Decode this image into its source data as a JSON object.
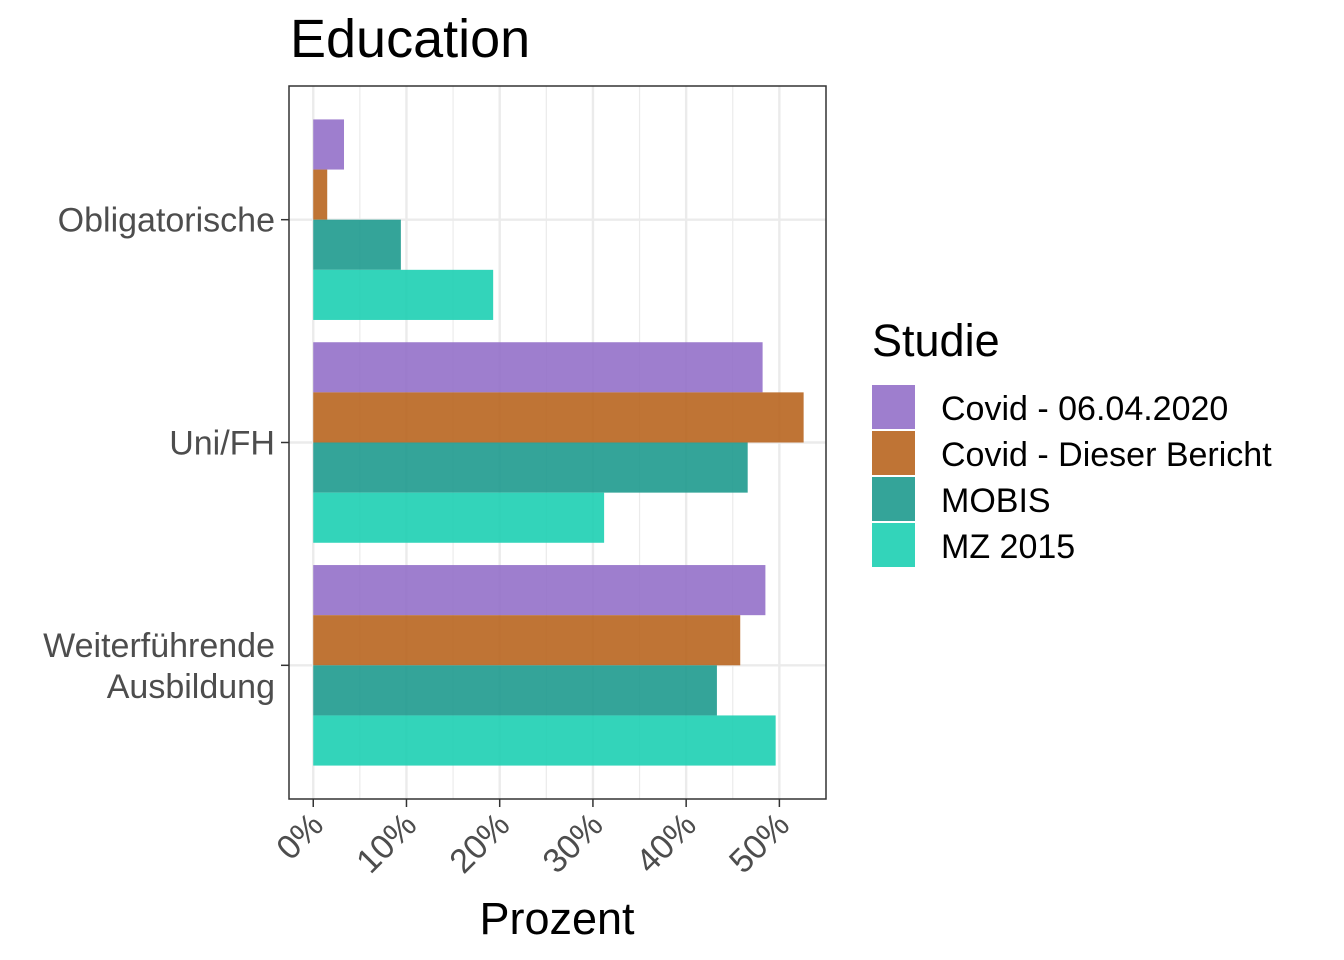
{
  "chart_data": {
    "type": "bar",
    "orientation": "horizontal",
    "title": "Education",
    "xlabel": "Prozent",
    "ylabel": "",
    "xlim": [
      -2.6,
      55
    ],
    "x_ticks": [
      0,
      10,
      20,
      30,
      40,
      50
    ],
    "x_tick_labels": [
      "0%",
      "10%",
      "20%",
      "30%",
      "40%",
      "50%"
    ],
    "categories": [
      [
        "Obligatorische"
      ],
      [
        "Uni/FH"
      ],
      [
        "Weiterführende",
        "Ausbildung"
      ]
    ],
    "series": [
      {
        "name": "Covid - 06.04.2020",
        "color": "#9370C9",
        "values": [
          3.3,
          48.2,
          48.5
        ]
      },
      {
        "name": "Covid - Dieser Bericht",
        "color": "#B8651F",
        "values": [
          1.5,
          52.6,
          45.8
        ]
      },
      {
        "name": "MOBIS",
        "color": "#1E9A8E",
        "values": [
          9.4,
          46.6,
          43.3
        ]
      },
      {
        "name": "MZ 2015",
        "color": "#1DCFB2",
        "values": [
          19.3,
          31.2,
          49.6
        ]
      }
    ],
    "legend": {
      "title": "Studie",
      "position": "right"
    },
    "grid": true,
    "bar_opacity": 0.9
  }
}
